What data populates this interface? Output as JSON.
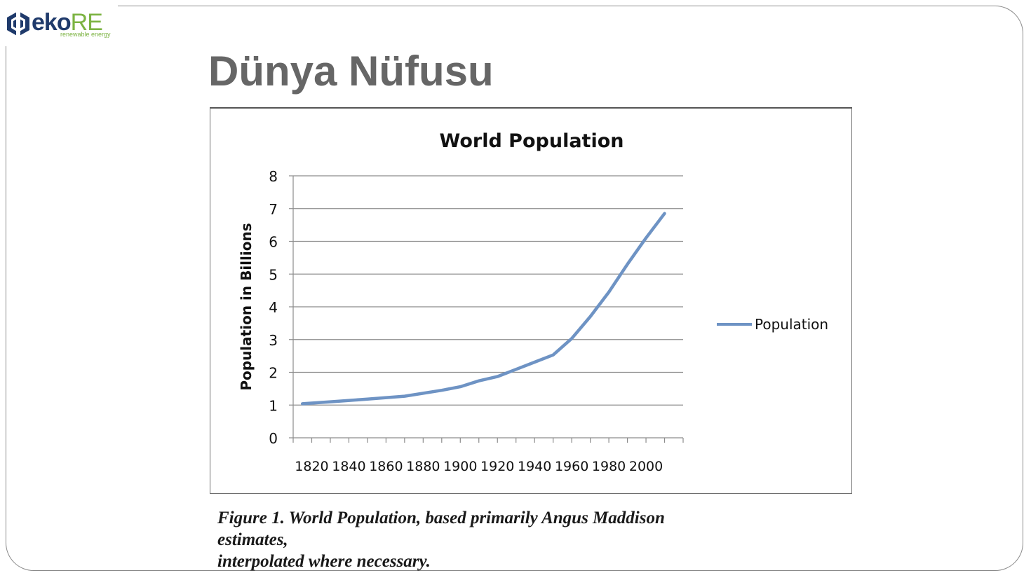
{
  "logo": {
    "brand_eko": "eko",
    "brand_re": "RE",
    "tagline": "renewable energy",
    "colors": {
      "navy": "#1f3a6b",
      "green": "#7cb342"
    }
  },
  "slide": {
    "title": "Dünya Nüfusu",
    "caption_lines": [
      "Figure 1. World Population, based primarily Angus Maddison",
      "estimates,",
      "interpolated where necessary."
    ]
  },
  "chart_data": {
    "type": "line",
    "title": "World Population",
    "xlabel": "",
    "ylabel": "Population in Billions",
    "xlim": [
      1810,
      2020
    ],
    "ylim": [
      0,
      8
    ],
    "y_ticks": [
      0,
      1,
      2,
      3,
      4,
      5,
      6,
      7,
      8
    ],
    "x_ticks": [
      1820,
      1840,
      1860,
      1880,
      1900,
      1920,
      1940,
      1960,
      1980,
      2000
    ],
    "grid": true,
    "legend_position": "right",
    "line_color": "#6e93c4",
    "series": [
      {
        "name": "Population",
        "x": [
          1815,
          1830,
          1850,
          1870,
          1890,
          1900,
          1910,
          1920,
          1930,
          1940,
          1950,
          1960,
          1970,
          1980,
          1990,
          2000,
          2010
        ],
        "values": [
          1.04,
          1.1,
          1.18,
          1.27,
          1.45,
          1.56,
          1.74,
          1.87,
          2.09,
          2.31,
          2.53,
          3.03,
          3.7,
          4.45,
          5.3,
          6.1,
          6.85
        ]
      }
    ]
  }
}
